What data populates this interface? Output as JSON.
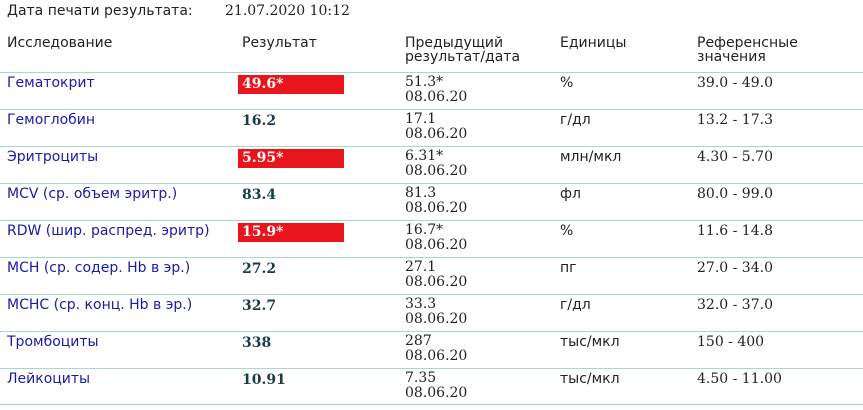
{
  "print_date": {
    "label": "Дата печати результата:",
    "value": "21.07.2020 10:12"
  },
  "headers": {
    "name": "Исследование",
    "result": "Результат",
    "previous": "Предыдущий результат/дата",
    "units": "Единицы",
    "reference": "Референсные значения"
  },
  "colors": {
    "abnormal_bg": "#e8151d",
    "row_border": "#a7d8c9",
    "link": "#1a1aa8"
  },
  "rows": [
    {
      "name": "Гематокрит",
      "result": "49.6*",
      "abnormal": true,
      "prev_value": "51.3*",
      "prev_date": "08.06.20",
      "units": "%",
      "reference": "39.0 - 49.0"
    },
    {
      "name": "Гемоглобин",
      "result": "16.2",
      "abnormal": false,
      "prev_value": "17.1",
      "prev_date": "08.06.20",
      "units": "г/дл",
      "reference": "13.2 - 17.3"
    },
    {
      "name": "Эритроциты",
      "result": "5.95*",
      "abnormal": true,
      "prev_value": "6.31*",
      "prev_date": "08.06.20",
      "units": "млн/мкл",
      "reference": "4.30 - 5.70"
    },
    {
      "name": "MCV (ср. объем эритр.)",
      "result": "83.4",
      "abnormal": false,
      "prev_value": "81.3",
      "prev_date": "08.06.20",
      "units": "фл",
      "reference": "80.0 - 99.0"
    },
    {
      "name": "RDW (шир. распред. эритр)",
      "result": "15.9*",
      "abnormal": true,
      "prev_value": "16.7*",
      "prev_date": "08.06.20",
      "units": "%",
      "reference": "11.6 - 14.8"
    },
    {
      "name": "MCH (ср. содер. Hb в эр.)",
      "result": "27.2",
      "abnormal": false,
      "prev_value": "27.1",
      "prev_date": "08.06.20",
      "units": "пг",
      "reference": "27.0 - 34.0"
    },
    {
      "name": "MCHC (ср. конц. Hb в эр.)",
      "result": "32.7",
      "abnormal": false,
      "prev_value": "33.3",
      "prev_date": "08.06.20",
      "units": "г/дл",
      "reference": "32.0 - 37.0"
    },
    {
      "name": "Тромбоциты",
      "result": "338",
      "abnormal": false,
      "prev_value": "287",
      "prev_date": "08.06.20",
      "units": "тыс/мкл",
      "reference": "150 - 400"
    },
    {
      "name": "Лейкоциты",
      "result": "10.91",
      "abnormal": false,
      "prev_value": "7.35",
      "prev_date": "08.06.20",
      "units": "тыс/мкл",
      "reference": "4.50 - 11.00"
    }
  ]
}
